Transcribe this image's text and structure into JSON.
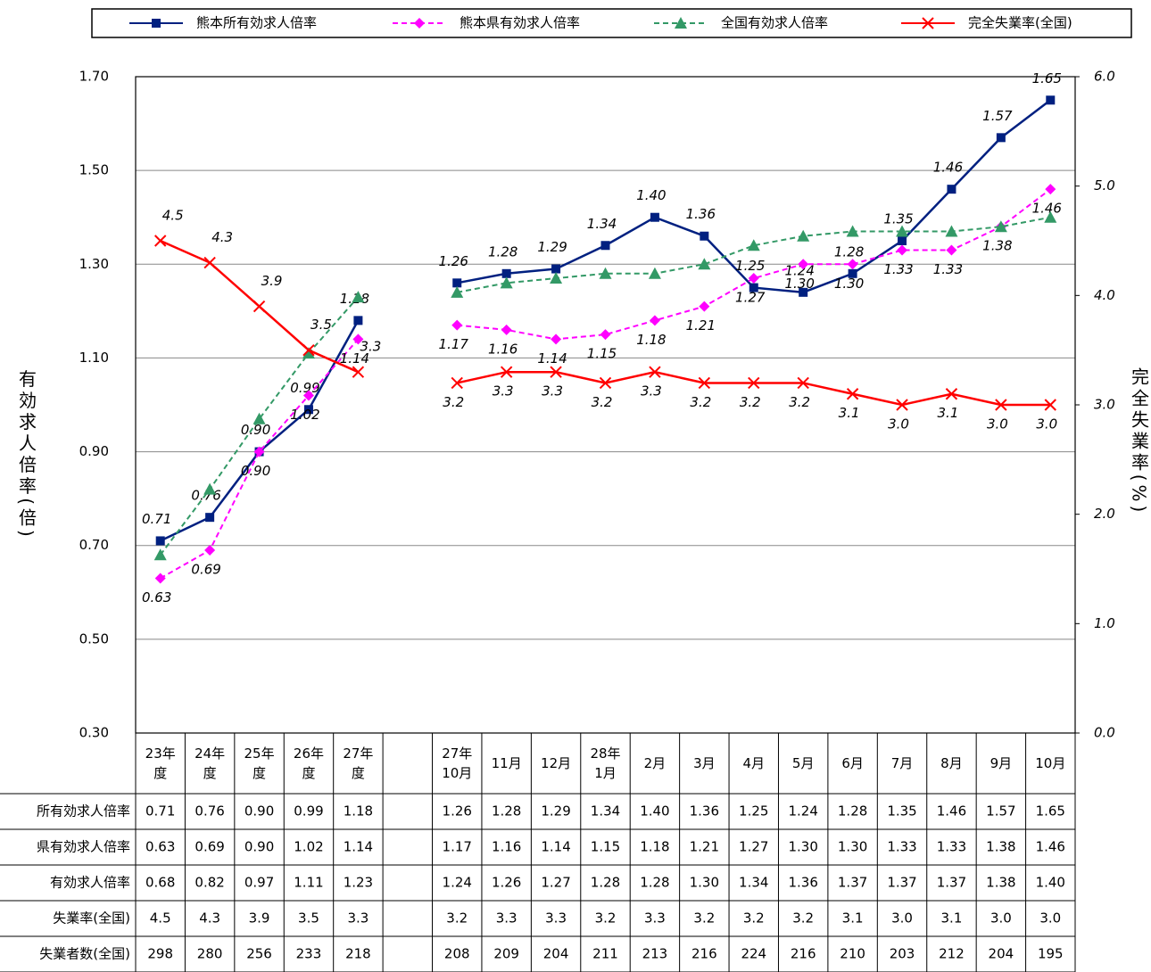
{
  "chart_data": {
    "type": "line",
    "categories": [
      "23年\n度",
      "24年\n度",
      "25年\n度",
      "26年\n度",
      "27年\n度",
      null,
      "27年\n10月",
      "11月",
      "12月",
      "28年\n1月",
      "2月",
      "3月",
      "4月",
      "5月",
      "6月",
      "7月",
      "8月",
      "9月",
      "10月"
    ],
    "ylim": [
      0.3,
      1.7
    ],
    "yticks": [
      {
        "value": 0.3,
        "label": "0.30"
      },
      {
        "value": 0.5,
        "label": "0.50"
      },
      {
        "value": 0.7,
        "label": "0.70"
      },
      {
        "value": 0.9,
        "label": "0.90"
      },
      {
        "value": 1.1,
        "label": "1.10"
      },
      {
        "value": 1.3,
        "label": "1.30"
      },
      {
        "value": 1.5,
        "label": "1.50"
      },
      {
        "value": 1.7,
        "label": "1.70"
      }
    ],
    "y2lim": [
      0,
      6
    ],
    "y2ticks": [
      {
        "value": 0,
        "label": "0.0"
      },
      {
        "value": 1,
        "label": "1.0"
      },
      {
        "value": 2,
        "label": "2.0"
      },
      {
        "value": 3,
        "label": "3.0"
      },
      {
        "value": 4,
        "label": "4.0"
      },
      {
        "value": 5,
        "label": "5.0"
      },
      {
        "value": 6,
        "label": "6.0"
      }
    ],
    "ylabel": "有効求人倍率(倍)",
    "y2label": "完全失業率(%)",
    "grid": true,
    "series": [
      {
        "name": "熊本所有効求人倍率",
        "row_label": "所有効求人倍率",
        "color": "#002080",
        "marker": "square",
        "dash": false,
        "labels": "above",
        "values": [
          0.71,
          0.76,
          0.9,
          0.99,
          1.18,
          null,
          1.26,
          1.28,
          1.29,
          1.34,
          1.4,
          1.36,
          1.25,
          1.24,
          1.28,
          1.35,
          1.46,
          1.57,
          1.65
        ],
        "value_labels": [
          "0.71",
          "0.76",
          "0.90",
          "0.99",
          "1.18",
          null,
          "1.26",
          "1.28",
          "1.29",
          "1.34",
          "1.40",
          "1.36",
          "1.25",
          "1.24",
          "1.28",
          "1.35",
          "1.46",
          "1.57",
          "1.65"
        ]
      },
      {
        "name": "熊本県有効求人倍率",
        "row_label": "県有効求人倍率",
        "color": "#ff00ff",
        "marker": "diamond",
        "dash": true,
        "labels": "below",
        "values": [
          0.63,
          0.69,
          0.9,
          1.02,
          1.14,
          null,
          1.17,
          1.16,
          1.14,
          1.15,
          1.18,
          1.21,
          1.27,
          1.3,
          1.3,
          1.33,
          1.33,
          1.38,
          1.46
        ],
        "value_labels": [
          "0.63",
          "0.69",
          "0.90",
          "1.02",
          "1.14",
          null,
          "1.17",
          "1.16",
          "1.14",
          "1.15",
          "1.18",
          "1.21",
          "1.27",
          "1.30",
          "1.30",
          "1.33",
          "1.33",
          "1.38",
          "1.46"
        ]
      },
      {
        "name": "全国有効求人倍率",
        "row_label": "有効求人倍率",
        "color": "#339966",
        "marker": "triangle",
        "dash": true,
        "labels": "none",
        "values": [
          0.68,
          0.82,
          0.97,
          1.11,
          1.23,
          null,
          1.24,
          1.26,
          1.27,
          1.28,
          1.28,
          1.3,
          1.34,
          1.36,
          1.37,
          1.37,
          1.37,
          1.38,
          1.4
        ],
        "value_labels": [
          "0.68",
          "0.82",
          "0.97",
          "1.11",
          "1.23",
          null,
          "1.24",
          "1.26",
          "1.27",
          "1.28",
          "1.28",
          "1.30",
          "1.34",
          "1.36",
          "1.37",
          "1.37",
          "1.37",
          "1.38",
          "1.40"
        ]
      },
      {
        "name": "完全失業率(全国)",
        "row_label": "失業率(全国)",
        "color": "#ff0000",
        "marker": "x",
        "dash": false,
        "labels": "mixed",
        "axis": "y2",
        "values": [
          4.5,
          4.3,
          3.9,
          3.5,
          3.3,
          null,
          3.2,
          3.3,
          3.3,
          3.2,
          3.3,
          3.2,
          3.2,
          3.2,
          3.1,
          3.0,
          3.1,
          3.0,
          3.0
        ],
        "value_labels": [
          "4.5",
          "4.3",
          "3.9",
          "3.5",
          "3.3",
          null,
          "3.2",
          "3.3",
          "3.3",
          "3.2",
          "3.3",
          "3.2",
          "3.2",
          "3.2",
          "3.1",
          "3.0",
          "3.1",
          "3.0",
          "3.0"
        ]
      }
    ],
    "extra_rows": [
      {
        "row_label": "失業者数(全国)",
        "values": [
          298,
          280,
          256,
          233,
          218,
          null,
          208,
          209,
          204,
          211,
          213,
          216,
          224,
          216,
          210,
          203,
          212,
          204,
          195
        ]
      }
    ]
  }
}
